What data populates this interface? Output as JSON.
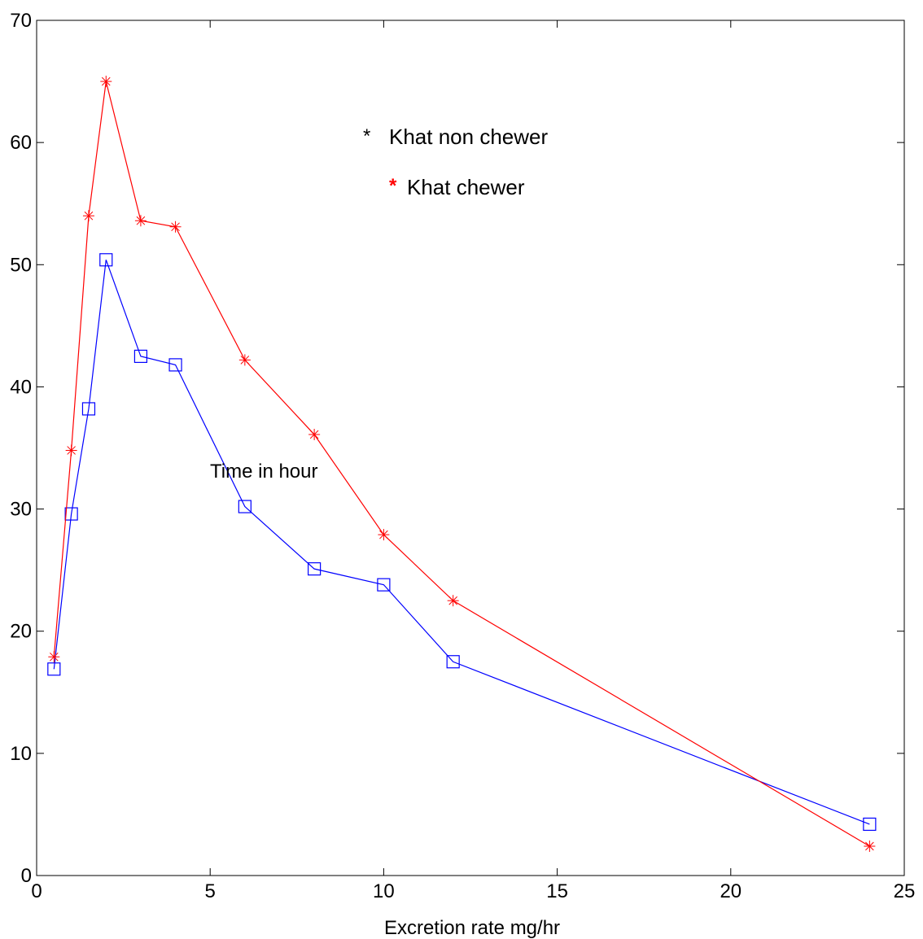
{
  "chart_data": {
    "type": "line",
    "xlabel": "Excretion rate mg/hr",
    "ylabel": "",
    "xlim": [
      0,
      25
    ],
    "ylim": [
      0,
      70
    ],
    "xticks": [
      0,
      5,
      10,
      15,
      20,
      25
    ],
    "yticks": [
      0,
      10,
      20,
      30,
      40,
      50,
      60,
      70
    ],
    "grid": false,
    "annotation": "Time in hour",
    "legend": {
      "placement": "top-center",
      "entries": [
        {
          "marker": "*",
          "label": "Khat non chewer",
          "color": "#000000"
        },
        {
          "marker": "*",
          "label": "Khat chewer",
          "color": "#ff0000"
        }
      ]
    },
    "series": [
      {
        "color": "#0000ff",
        "marker": "square",
        "x": [
          0.5,
          1,
          1.5,
          2,
          3,
          4,
          6,
          8,
          10,
          12,
          24
        ],
        "y": [
          16.9,
          29.6,
          38.2,
          50.4,
          42.5,
          41.8,
          30.2,
          25.1,
          23.8,
          17.5,
          4.2
        ]
      },
      {
        "color": "#ff0000",
        "marker": "asterisk",
        "x": [
          0.5,
          1,
          1.5,
          2,
          3,
          4,
          6,
          8,
          10,
          12,
          24
        ],
        "y": [
          17.9,
          34.8,
          54.0,
          65.0,
          53.6,
          53.1,
          42.2,
          36.1,
          27.9,
          22.5,
          2.4
        ]
      }
    ]
  }
}
